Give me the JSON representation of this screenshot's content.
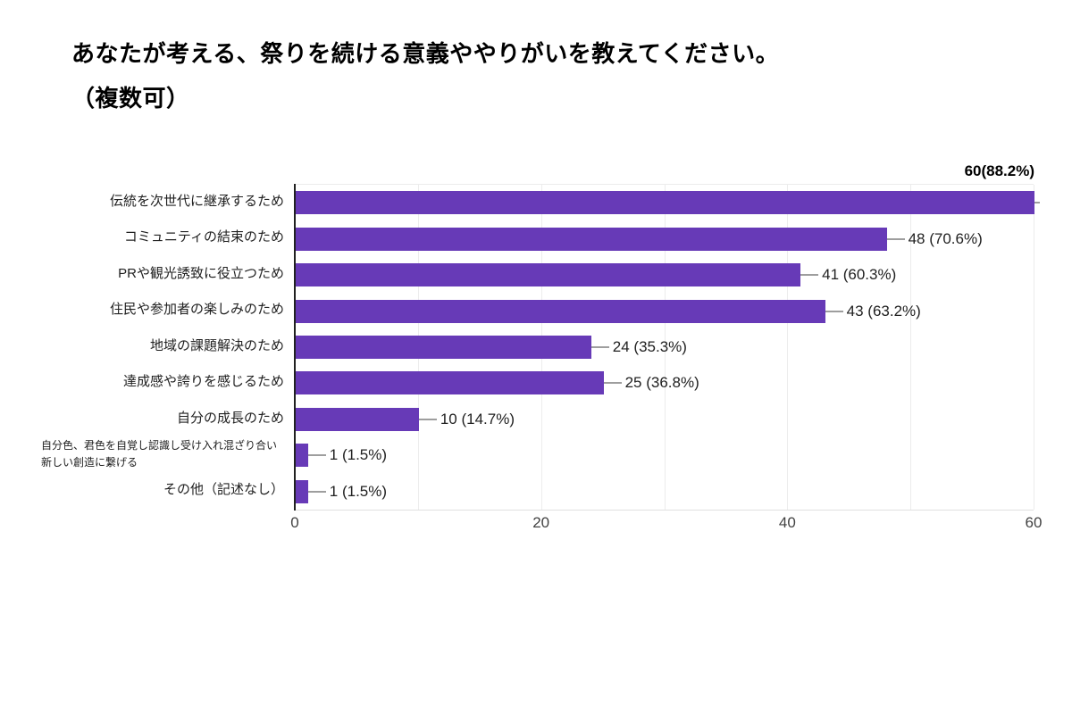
{
  "header": {
    "title_line1": "あなたが考える、祭りを続ける意義ややりがいを教えてください。",
    "title_line2": "（複数可）"
  },
  "chart_data": {
    "type": "bar",
    "orientation": "horizontal",
    "title": "あなたが考える、祭りを続ける意義ややりがいを教えてください。（複数可）",
    "categories": [
      "伝統を次世代に継承するため",
      "コミュニティの結束のため",
      "PRや観光誘致に役立つため",
      "住民や参加者の楽しみのため",
      "地域の課題解決のため",
      "達成感や誇りを感じるため",
      "自分の成長のため",
      "自分色、君色を自覚し認識し受け入れ混ざり合い新しい創造に繋げる",
      "その他（記述なし）"
    ],
    "values": [
      60,
      48,
      41,
      43,
      24,
      25,
      10,
      1,
      1
    ],
    "value_labels": [
      "60(88.2%)",
      "48 (70.6%)",
      "41 (60.3%)",
      "43 (63.2%)",
      "24 (35.3%)",
      "25 (36.8%)",
      "10 (14.7%)",
      "1 (1.5%)",
      "1 (1.5%)"
    ],
    "percentages": [
      88.2,
      70.6,
      60.3,
      63.2,
      35.3,
      36.8,
      14.7,
      1.5,
      1.5
    ],
    "xlim": [
      0,
      60
    ],
    "x_ticks": [
      "0",
      "20",
      "40",
      "60"
    ],
    "x_tick_values": [
      0,
      20,
      40,
      60
    ],
    "gridline_values": [
      10,
      20,
      30,
      40,
      50,
      60
    ],
    "grid": true,
    "legend": "none",
    "colors": {
      "bar": "#673ab7",
      "axis_line": "#212121",
      "gridline": "#ececec",
      "plot_bottom_border": "#e0e0e0",
      "callout": "#9e9e9e",
      "value_label": "#212121",
      "category_label": "#212121",
      "tick_label": "#424242",
      "title": "#000000",
      "background": "#ffffff"
    }
  }
}
